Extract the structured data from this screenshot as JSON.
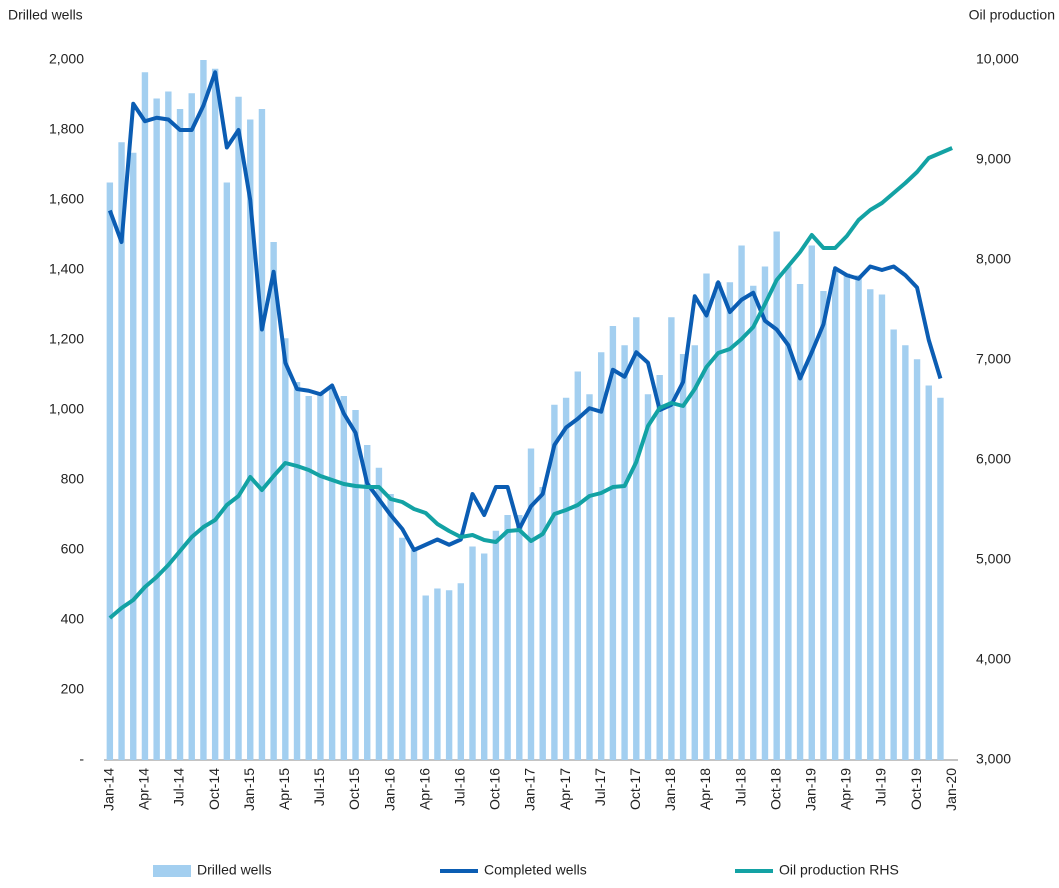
{
  "chart_data": {
    "type": "bar",
    "y_label": "Drilled wells",
    "y2_label": "Oil production",
    "categories": [
      "Jan-14",
      null,
      null,
      "Apr-14",
      null,
      null,
      "Jul-14",
      null,
      null,
      "Oct-14",
      null,
      null,
      "Jan-15",
      null,
      null,
      "Apr-15",
      null,
      null,
      "Jul-15",
      null,
      null,
      "Oct-15",
      null,
      null,
      "Jan-16",
      null,
      null,
      "Apr-16",
      null,
      null,
      "Jul-16",
      null,
      null,
      "Oct-16",
      null,
      null,
      "Jan-17",
      null,
      null,
      "Apr-17",
      null,
      null,
      "Jul-17",
      null,
      null,
      "Oct-17",
      null,
      null,
      "Jan-18",
      null,
      null,
      "Apr-18",
      null,
      null,
      "Jul-18",
      null,
      null,
      "Oct-18",
      null,
      null,
      "Jan-19",
      null,
      null,
      "Apr-19",
      null,
      null,
      "Jul-19",
      null,
      null,
      "Oct-19",
      null,
      null,
      "Jan-20"
    ],
    "series": [
      {
        "name": "Drilled wells",
        "type": "bar",
        "color": "#a3cff0",
        "values": [
          1650,
          1765,
          1735,
          1965,
          1890,
          1910,
          1860,
          1905,
          2000,
          1975,
          1650,
          1895,
          1830,
          1860,
          1480,
          1205,
          1080,
          1040,
          1050,
          1065,
          1040,
          1000,
          900,
          835,
          760,
          635,
          600,
          470,
          490,
          485,
          505,
          610,
          590,
          655,
          700,
          700,
          890,
          780,
          1015,
          1035,
          1110,
          1045,
          1165,
          1240,
          1185,
          1265,
          1045,
          1100,
          1265,
          1160,
          1185,
          1390,
          1365,
          1365,
          1470,
          1355,
          1410,
          1510,
          1410,
          1360,
          1470,
          1340,
          1400,
          1390,
          1385,
          1345,
          1330,
          1230,
          1185,
          1145,
          1070,
          1035,
          null
        ]
      },
      {
        "name": "Completed wells",
        "type": "line",
        "color": "#0b5db3",
        "values": [
          1570,
          1480,
          1875,
          1825,
          1835,
          1830,
          1800,
          1800,
          1870,
          1965,
          1750,
          1800,
          1600,
          1230,
          1395,
          1135,
          1060,
          1055,
          1045,
          1070,
          990,
          935,
          790,
          745,
          700,
          660,
          600,
          615,
          630,
          615,
          630,
          760,
          700,
          780,
          780,
          660,
          725,
          760,
          900,
          950,
          975,
          1005,
          995,
          1115,
          1095,
          1165,
          1135,
          1000,
          1015,
          1080,
          1325,
          1270,
          1365,
          1280,
          1315,
          1335,
          1255,
          1230,
          1185,
          1090,
          1165,
          1245,
          1405,
          1385,
          1375,
          1410,
          1400,
          1410,
          1385,
          1350,
          1200,
          1090,
          null
        ]
      },
      {
        "name": "Oil production RHS",
        "type": "line",
        "axis": "y2",
        "color": "#13a2a4",
        "values": [
          4420,
          4520,
          4600,
          4730,
          4830,
          4950,
          5090,
          5230,
          5330,
          5400,
          5550,
          5640,
          5830,
          5700,
          5840,
          5970,
          5940,
          5900,
          5840,
          5800,
          5760,
          5740,
          5730,
          5730,
          5610,
          5580,
          5510,
          5470,
          5360,
          5290,
          5230,
          5250,
          5200,
          5180,
          5290,
          5300,
          5190,
          5260,
          5460,
          5500,
          5550,
          5640,
          5670,
          5730,
          5740,
          5980,
          6340,
          6520,
          6570,
          6540,
          6710,
          6930,
          7070,
          7110,
          7210,
          7330,
          7560,
          7800,
          7940,
          8080,
          8250,
          8120,
          8120,
          8240,
          8400,
          8500,
          8570,
          8670,
          8770,
          8880,
          9020,
          9070,
          9120
        ]
      }
    ],
    "ylim": [
      0,
      2000
    ],
    "yticks": [
      {
        "value": 0,
        "label": "-"
      },
      200,
      400,
      600,
      800,
      {
        "value": 1000,
        "label": "1,000"
      },
      {
        "value": 1200,
        "label": "1,200"
      },
      {
        "value": 1400,
        "label": "1,400"
      },
      {
        "value": 1600,
        "label": "1,600"
      },
      {
        "value": 1800,
        "label": "1,800"
      },
      {
        "value": 2000,
        "label": "2,000"
      }
    ],
    "y2lim": [
      3000,
      10000
    ],
    "y2ticks": [
      {
        "value": 3000,
        "label": "3,000"
      },
      {
        "value": 4000,
        "label": "4,000"
      },
      {
        "value": 5000,
        "label": "5,000"
      },
      {
        "value": 6000,
        "label": "6,000"
      },
      {
        "value": 7000,
        "label": "7,000"
      },
      {
        "value": 8000,
        "label": "8,000"
      },
      {
        "value": 9000,
        "label": "9,000"
      },
      {
        "value": 10000,
        "label": "10,000"
      }
    ],
    "legend": "bottom"
  }
}
